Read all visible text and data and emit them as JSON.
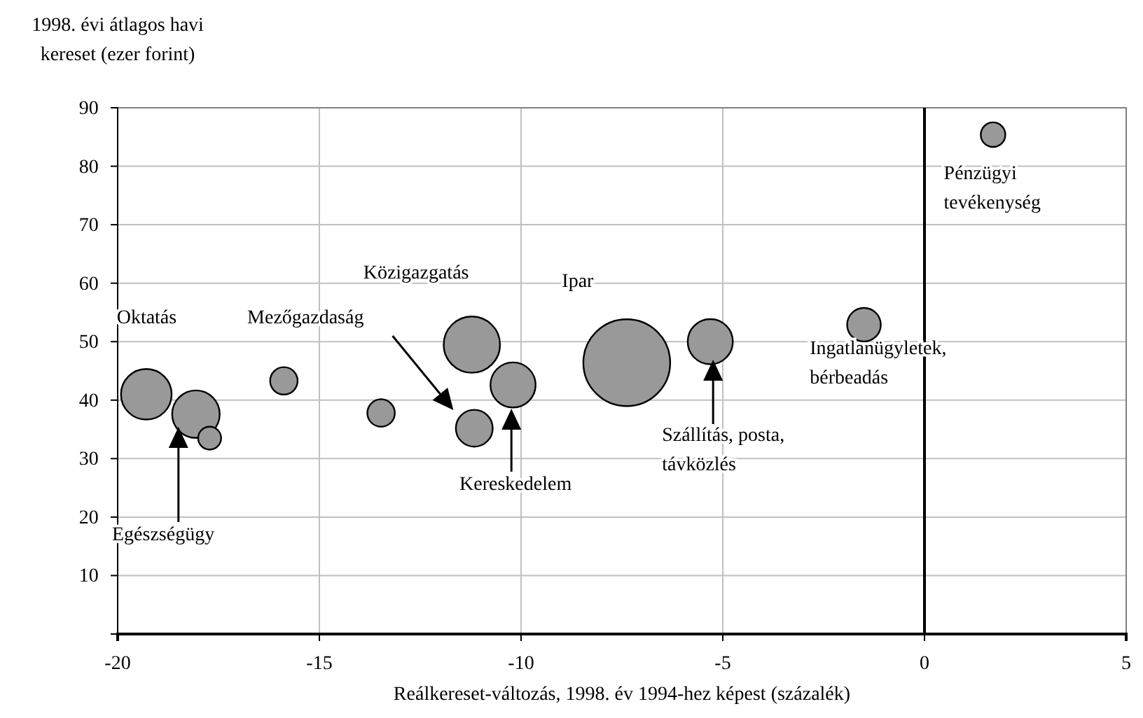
{
  "chart_data": {
    "type": "bubble",
    "xlabel": "Reálkereset-változás, 1998. év 1994-hez képest (százalék)",
    "ylabel": "1998. évi átlagos havi\nkereset (ezer forint)",
    "x": [
      -19.29,
      -18.06,
      -17.72,
      -15.88,
      -13.47,
      -11.22,
      -10.2,
      -11.16,
      -7.38,
      -5.31,
      1.7,
      -1.5
    ],
    "values": [
      41,
      37.6,
      33.5,
      43.3,
      37.8,
      49.5,
      42.6,
      35.2,
      46.4,
      50,
      85.4,
      52.9
    ],
    "sizes": [
      0.34,
      0.3,
      0.07,
      0.1,
      0.1,
      0.42,
      0.27,
      0.18,
      1,
      0.27,
      0.08,
      0.15
    ],
    "color": "#999999",
    "xlim": [
      -20,
      5
    ],
    "xticks": [
      -20,
      -15,
      -10,
      -5,
      0,
      5
    ],
    "ylim": [
      0,
      90
    ],
    "yticks": [
      10,
      20,
      30,
      40,
      50,
      60,
      70,
      80,
      90
    ],
    "grid": true,
    "ref_lines": [
      {
        "axis": "x",
        "value": 0,
        "color": "#000000"
      }
    ],
    "annotations": [
      "Oktatás",
      "Mezőgazdaság",
      "Közigazgatás",
      "Ipar",
      "Kereskedelem",
      "Egészségügy",
      "Szállítás, posta,\ntávközlés",
      "Pénzügyi\ntevékenység",
      "Ingatlanügyletek,\nbérbeadás"
    ]
  }
}
